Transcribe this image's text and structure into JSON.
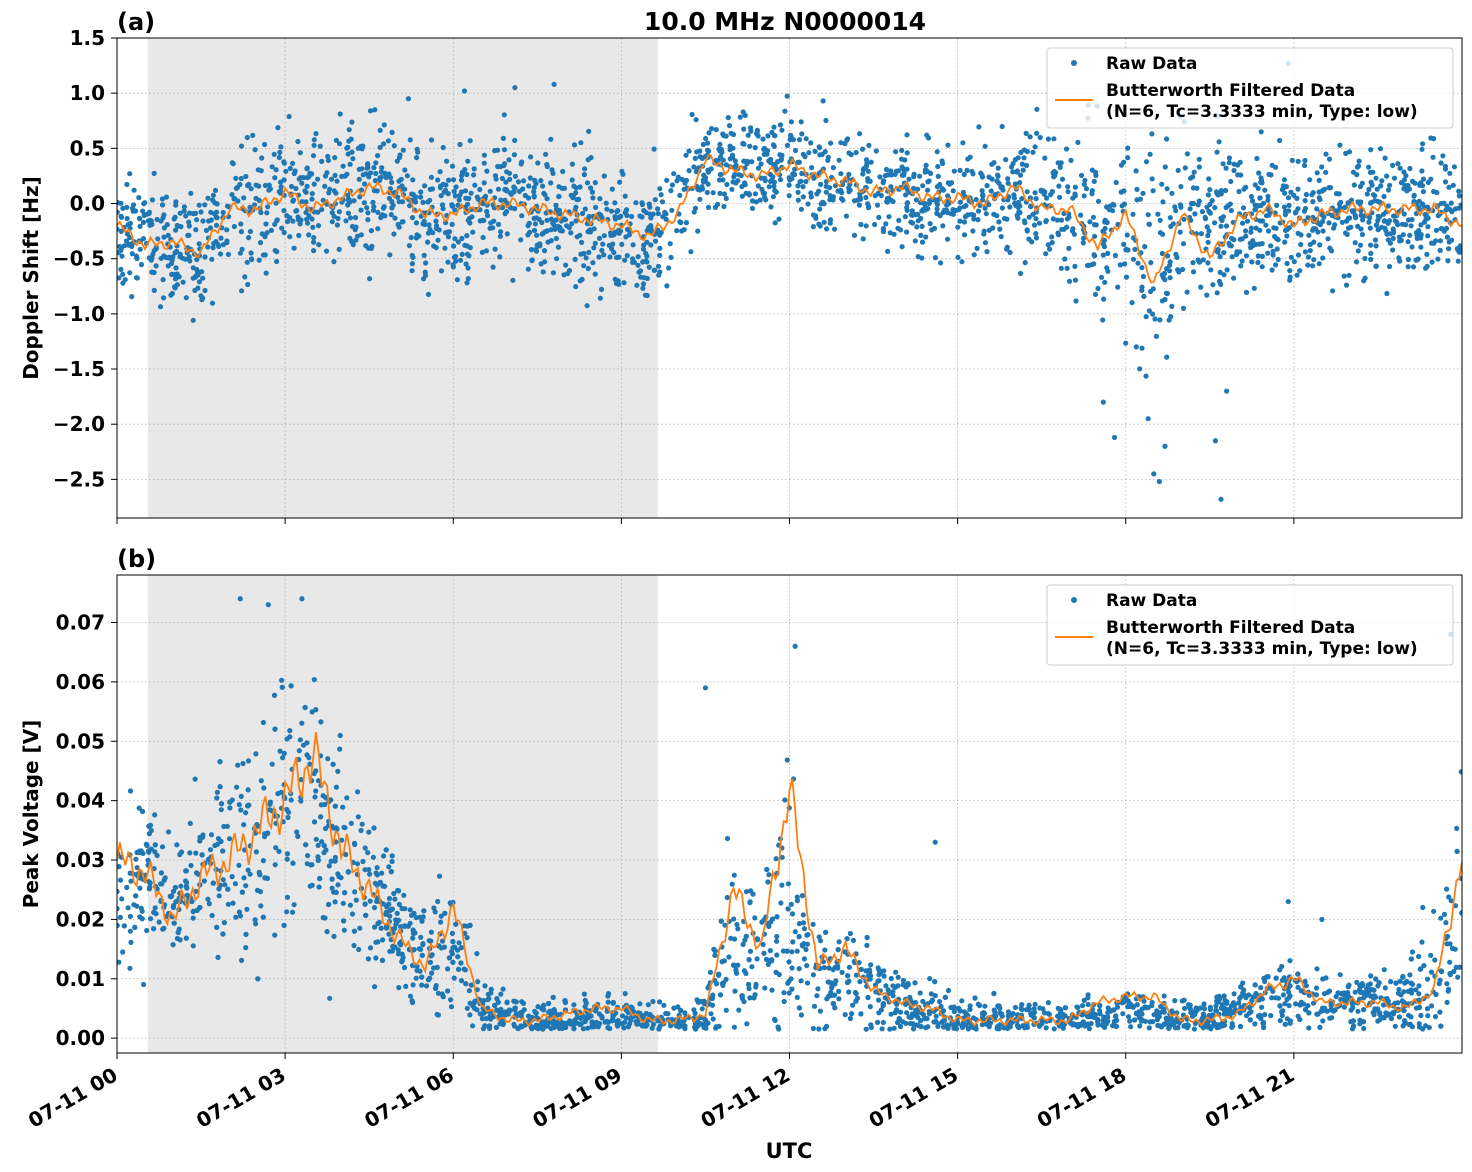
{
  "figure": {
    "title": "10.0 MHz N0000014",
    "xlabel": "UTC",
    "xtick_labels": [
      "07-11 00",
      "07-11 03",
      "07-11 06",
      "07-11 09",
      "07-11 12",
      "07-11 15",
      "07-11 18",
      "07-11 21"
    ]
  },
  "colors": {
    "raw": "#1f77b4",
    "filtered": "#ff7f0e",
    "night_shade": "#e8e8e8",
    "grid": "#b0b0b0"
  },
  "chart_data": [
    {
      "type": "scatter",
      "panel_label": "(a)",
      "ylabel": "Doppler Shift [Hz]",
      "xlim_hours": [
        0,
        24
      ],
      "ylim": [
        -2.85,
        1.5
      ],
      "yticks": [
        -2.5,
        -2.0,
        -1.5,
        -1.0,
        -0.5,
        0.0,
        0.5,
        1.0,
        1.5
      ],
      "ytick_labels": [
        "−2.5",
        "−2.0",
        "−1.5",
        "−1.0",
        "−0.5",
        "0.0",
        "0.5",
        "1.0",
        "1.5"
      ],
      "shaded_region_hours": [
        0.55,
        9.65
      ],
      "grid": true,
      "legend_position": "top-right",
      "legend": [
        "Raw Data",
        "Butterworth Filtered Data",
        "(N=6, Tc=3.3333 min, Type: low)"
      ],
      "series": [
        {
          "name": "Raw Data",
          "x": [
            0,
            0.5,
            1,
            1.5,
            2,
            2.5,
            3,
            3.5,
            4,
            4.5,
            5,
            5.5,
            6,
            6.5,
            7,
            7.5,
            8,
            8.5,
            9,
            9.5,
            10,
            10.5,
            11,
            11.5,
            12,
            12.5,
            13,
            13.5,
            14,
            14.5,
            15,
            15.5,
            16,
            16.5,
            17,
            17.5,
            18,
            18.5,
            19,
            19.5,
            20,
            20.5,
            21,
            21.5,
            22,
            22.5,
            23,
            23.5,
            24
          ],
          "y_center": [
            -0.2,
            -0.35,
            -0.4,
            -0.45,
            -0.1,
            -0.05,
            0.1,
            0,
            0.05,
            0.1,
            0.05,
            -0.1,
            -0.1,
            0,
            0,
            -0.05,
            -0.1,
            -0.15,
            -0.25,
            -0.3,
            -0.05,
            0.35,
            0.35,
            0.3,
            0.35,
            0.2,
            0.2,
            0.1,
            0.1,
            0.05,
            0.05,
            0,
            0.1,
            0,
            -0.1,
            -0.15,
            -0.2,
            -0.5,
            -0.15,
            -0.15,
            -0.1,
            -0.1,
            -0.15,
            -0.05,
            -0.05,
            -0.05,
            -0.05,
            -0.1,
            -0.15
          ],
          "y_spread": [
            0.45,
            0.5,
            0.55,
            0.55,
            0.6,
            0.65,
            0.65,
            0.6,
            0.6,
            0.6,
            0.6,
            0.55,
            0.55,
            0.55,
            0.55,
            0.55,
            0.6,
            0.6,
            0.65,
            0.6,
            0.6,
            0.45,
            0.4,
            0.4,
            0.45,
            0.45,
            0.45,
            0.45,
            0.5,
            0.55,
            0.5,
            0.5,
            0.55,
            0.6,
            0.65,
            0.75,
            0.85,
            1.1,
            0.8,
            0.7,
            0.65,
            0.6,
            0.6,
            0.6,
            0.6,
            0.6,
            0.6,
            0.6,
            0.55
          ],
          "outliers": [
            [
              17.6,
              -1.8
            ],
            [
              17.8,
              -2.12
            ],
            [
              18.4,
              -1.95
            ],
            [
              18.5,
              -2.45
            ],
            [
              18.6,
              -2.52
            ],
            [
              18.7,
              -2.2
            ],
            [
              19.6,
              -2.15
            ],
            [
              19.7,
              -2.68
            ],
            [
              19.8,
              -1.7
            ],
            [
              4.6,
              0.85
            ],
            [
              5.2,
              0.95
            ],
            [
              6.2,
              1.02
            ],
            [
              7.1,
              1.05
            ],
            [
              7.8,
              1.08
            ],
            [
              12.6,
              0.93
            ],
            [
              20.9,
              1.27
            ]
          ]
        },
        {
          "name": "Butterworth Filtered Data",
          "x": [
            0,
            0.5,
            1,
            1.5,
            2,
            2.5,
            3,
            3.5,
            4,
            4.5,
            5,
            5.5,
            6,
            6.5,
            7,
            7.5,
            8,
            8.5,
            9,
            9.5,
            10,
            10.5,
            11,
            11.5,
            12,
            12.5,
            13,
            13.5,
            14,
            14.5,
            15,
            15.5,
            16,
            16.5,
            17,
            17.5,
            18,
            18.5,
            19,
            19.5,
            20,
            20.5,
            21,
            21.5,
            22,
            22.5,
            23,
            23.5,
            24
          ],
          "y": [
            -0.2,
            -0.38,
            -0.35,
            -0.45,
            -0.05,
            -0.05,
            0.1,
            -0.05,
            0.05,
            0.15,
            0.1,
            -0.1,
            -0.1,
            0,
            0,
            -0.05,
            -0.1,
            -0.15,
            -0.2,
            -0.3,
            -0.1,
            0.4,
            0.3,
            0.25,
            0.35,
            0.25,
            0.2,
            0.1,
            0.15,
            0.05,
            0.05,
            0,
            0.15,
            -0.05,
            -0.05,
            -0.4,
            -0.1,
            -0.75,
            -0.1,
            -0.5,
            -0.15,
            -0.05,
            -0.2,
            -0.1,
            -0.05,
            -0.05,
            -0.05,
            -0.05,
            -0.2
          ]
        }
      ]
    },
    {
      "type": "scatter",
      "panel_label": "(b)",
      "ylabel": "Peak Voltage [V]",
      "xlim_hours": [
        0,
        24
      ],
      "ylim": [
        -0.0025,
        0.078
      ],
      "yticks": [
        0.0,
        0.01,
        0.02,
        0.03,
        0.04,
        0.05,
        0.06,
        0.07
      ],
      "ytick_labels": [
        "0.00",
        "0.01",
        "0.02",
        "0.03",
        "0.04",
        "0.05",
        "0.06",
        "0.07"
      ],
      "shaded_region_hours": [
        0.55,
        9.65
      ],
      "grid": true,
      "legend_position": "top-right",
      "legend": [
        "Raw Data",
        "Butterworth Filtered Data",
        "(N=6, Tc=3.3333 min, Type: low)"
      ],
      "series": [
        {
          "name": "Raw Data",
          "x": [
            0,
            0.5,
            1,
            1.5,
            2,
            2.5,
            3,
            3.5,
            4,
            4.5,
            5,
            5.5,
            6,
            6.5,
            7,
            7.5,
            8,
            8.5,
            9,
            9.5,
            10,
            10.5,
            11,
            11.5,
            12,
            12.5,
            13,
            13.5,
            14,
            14.5,
            15,
            15.5,
            16,
            16.5,
            17,
            17.5,
            18,
            18.5,
            19,
            19.5,
            20,
            20.5,
            21,
            21.5,
            22,
            22.5,
            23,
            23.5,
            24
          ],
          "y_center": [
            0.025,
            0.028,
            0.022,
            0.028,
            0.032,
            0.033,
            0.04,
            0.038,
            0.03,
            0.025,
            0.018,
            0.014,
            0.015,
            0.006,
            0.004,
            0.003,
            0.003,
            0.004,
            0.004,
            0.003,
            0.003,
            0.004,
            0.018,
            0.015,
            0.02,
            0.01,
            0.012,
            0.008,
            0.006,
            0.005,
            0.003,
            0.003,
            0.003,
            0.003,
            0.003,
            0.003,
            0.005,
            0.004,
            0.003,
            0.003,
            0.005,
            0.006,
            0.008,
            0.006,
            0.006,
            0.006,
            0.006,
            0.01,
            0.022
          ],
          "y_spread": [
            0.012,
            0.014,
            0.01,
            0.012,
            0.016,
            0.018,
            0.022,
            0.024,
            0.016,
            0.014,
            0.01,
            0.009,
            0.012,
            0.006,
            0.004,
            0.003,
            0.003,
            0.003,
            0.003,
            0.003,
            0.003,
            0.005,
            0.016,
            0.012,
            0.02,
            0.01,
            0.009,
            0.007,
            0.006,
            0.006,
            0.003,
            0.004,
            0.004,
            0.003,
            0.003,
            0.003,
            0.003,
            0.003,
            0.003,
            0.003,
            0.004,
            0.006,
            0.006,
            0.005,
            0.005,
            0.005,
            0.006,
            0.01,
            0.022
          ],
          "outliers": [
            [
              2.2,
              0.074
            ],
            [
              2.7,
              0.073
            ],
            [
              3.3,
              0.074
            ],
            [
              12.1,
              0.066
            ],
            [
              10.5,
              0.059
            ],
            [
              14.6,
              0.033
            ],
            [
              20.9,
              0.023
            ],
            [
              21.5,
              0.02
            ],
            [
              23.3,
              0.022
            ],
            [
              23.8,
              0.068
            ]
          ]
        },
        {
          "name": "Butterworth Filtered Data",
          "x": [
            0,
            0.5,
            1,
            1.5,
            2,
            2.5,
            3,
            3.5,
            4,
            4.5,
            5,
            5.5,
            6,
            6.5,
            7,
            7.5,
            8,
            8.5,
            9,
            9.5,
            10,
            10.5,
            11,
            11.5,
            12,
            12.5,
            13,
            13.5,
            14,
            14.5,
            15,
            15.5,
            16,
            16.5,
            17,
            17.5,
            18,
            18.5,
            19,
            19.5,
            20,
            20.5,
            21,
            21.5,
            22,
            22.5,
            23,
            23.5,
            24
          ],
          "y": [
            0.03,
            0.028,
            0.02,
            0.027,
            0.03,
            0.035,
            0.04,
            0.048,
            0.032,
            0.025,
            0.017,
            0.012,
            0.022,
            0.005,
            0.003,
            0.003,
            0.004,
            0.005,
            0.005,
            0.003,
            0.003,
            0.004,
            0.025,
            0.015,
            0.042,
            0.012,
            0.015,
            0.008,
            0.006,
            0.005,
            0.003,
            0.003,
            0.003,
            0.003,
            0.003,
            0.006,
            0.007,
            0.007,
            0.003,
            0.003,
            0.004,
            0.008,
            0.01,
            0.006,
            0.006,
            0.006,
            0.005,
            0.008,
            0.03
          ]
        }
      ]
    }
  ]
}
